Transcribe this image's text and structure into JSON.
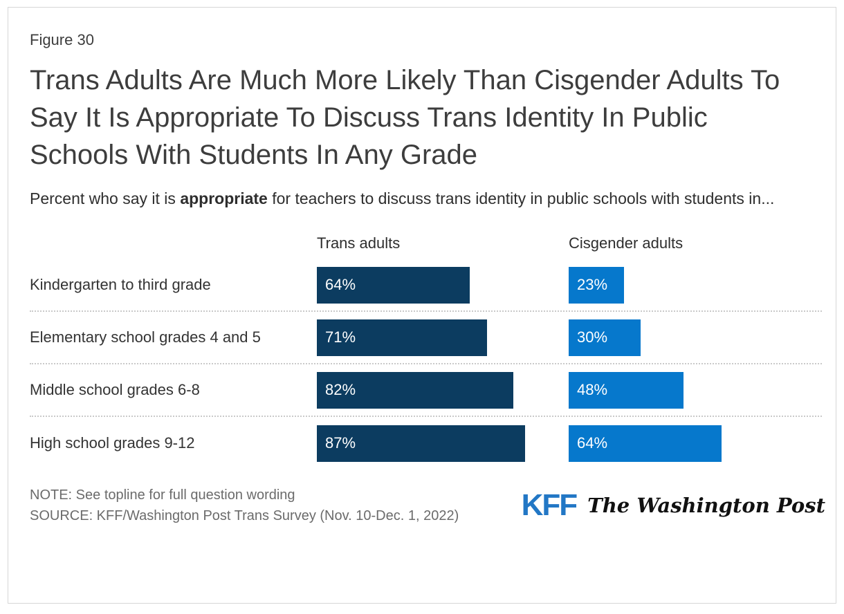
{
  "figure_label": "Figure 30",
  "title": "Trans Adults Are Much More Likely Than Cisgender Adults To Say It Is Appropriate To Discuss Trans Identity In Public Schools With Students In Any Grade",
  "subtitle": {
    "prefix": "Percent who say it is ",
    "bold": "appropriate",
    "suffix": " for teachers to discuss trans identity in public schools with students in..."
  },
  "chart_data": {
    "type": "bar",
    "orientation": "horizontal",
    "categories": [
      "Kindergarten to third grade",
      "Elementary school grades 4 and 5",
      "Middle school grades 6-8",
      "High school grades 9-12"
    ],
    "series": [
      {
        "name": "Trans adults",
        "color": "#0c3c60",
        "values": [
          64,
          71,
          82,
          87
        ]
      },
      {
        "name": "Cisgender adults",
        "color": "#0678cc",
        "values": [
          23,
          30,
          48,
          64
        ]
      }
    ],
    "value_suffix": "%",
    "xlim": [
      0,
      100
    ],
    "data_labels": "inside-start",
    "grid": "dotted-row-separators",
    "legend_position": "column-headers"
  },
  "note": "NOTE: See topline for full question wording",
  "source": "SOURCE: KFF/Washington Post Trans Survey (Nov. 10-Dec. 1, 2022)",
  "logos": {
    "kff": "KFF",
    "wapo": "The Washington Post"
  },
  "colors": {
    "trans_bar": "#0c3c60",
    "cis_bar": "#0678cc",
    "kff_blue": "#2277c5"
  }
}
